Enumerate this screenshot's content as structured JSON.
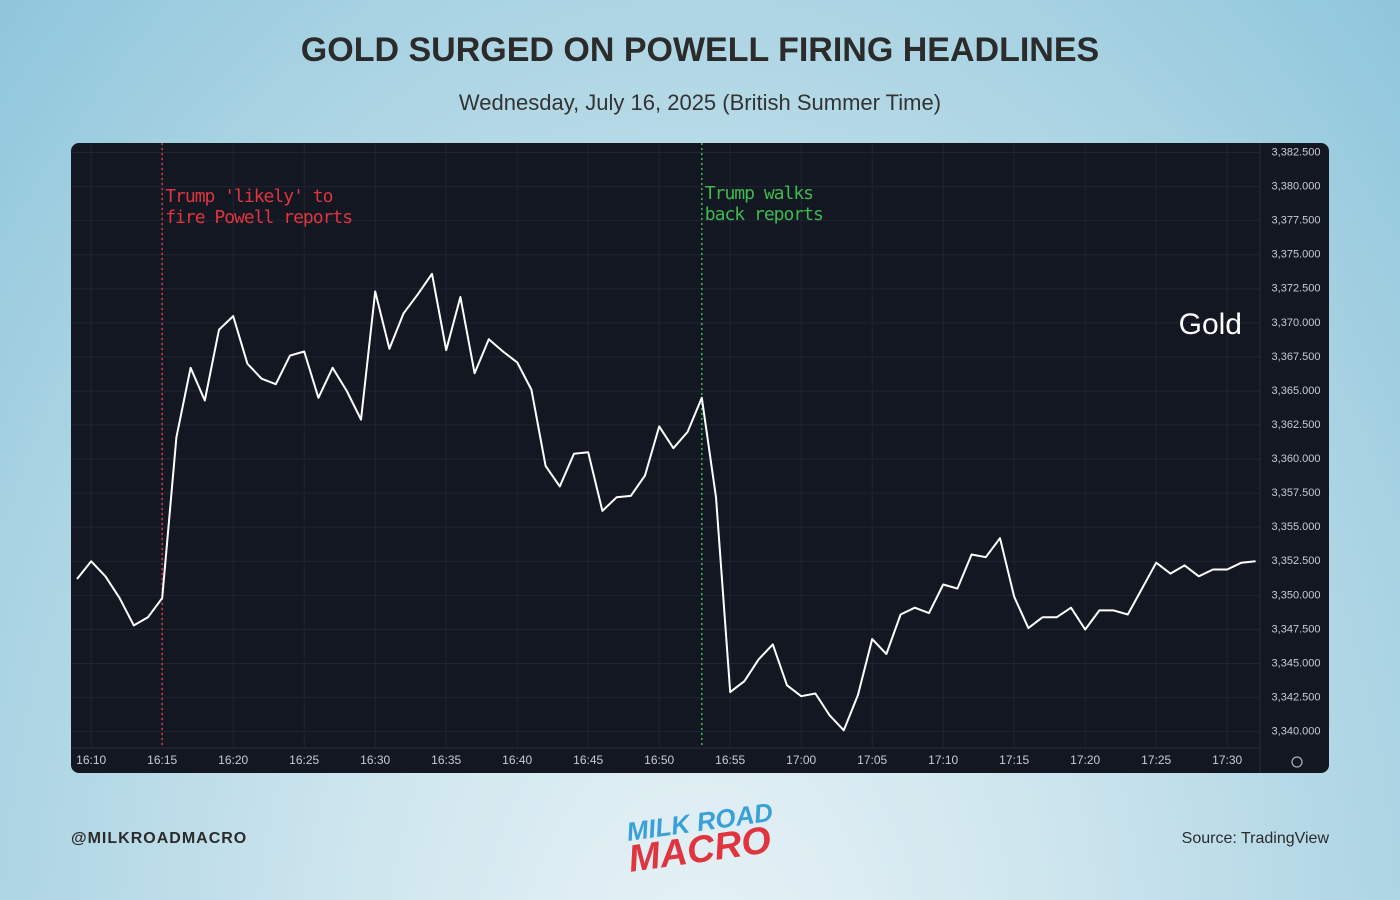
{
  "chart_data": {
    "type": "line",
    "title": "GOLD SURGED ON POWELL FIRING HEADLINES",
    "subtitle": "Wednesday, July 16, 2025 (British Summer Time)",
    "categories": [
      null,
      "16:10",
      null,
      null,
      null,
      null,
      "16:15",
      null,
      null,
      null,
      null,
      "16:20",
      null,
      null,
      null,
      null,
      "16:25",
      null,
      null,
      null,
      null,
      "16:30",
      null,
      null,
      null,
      null,
      "16:35",
      null,
      null,
      null,
      null,
      "16:40",
      null,
      null,
      null,
      null,
      "16:45",
      null,
      null,
      null,
      null,
      "16:50",
      null,
      null,
      null,
      null,
      "16:55",
      null,
      null,
      null,
      null,
      "17:00",
      null,
      null,
      null,
      null,
      "17:05",
      null,
      null,
      null,
      null,
      "17:10",
      null,
      null,
      null,
      null,
      "17:15",
      null,
      null,
      null,
      null,
      "17:20",
      null,
      null,
      null,
      null,
      "17:25",
      null,
      null,
      null,
      null,
      "17:30",
      null,
      null
    ],
    "series": [
      {
        "name": "Gold",
        "color": "#ffffff",
        "values": [
          3351.2,
          3352.5,
          3351.4,
          3349.8,
          3347.8,
          3348.4,
          3349.8,
          3361.6,
          3366.7,
          3364.3,
          3369.5,
          3370.5,
          3367.0,
          3365.9,
          3365.5,
          3367.6,
          3367.9,
          3364.5,
          3366.7,
          3365.0,
          3362.9,
          3372.3,
          3368.1,
          3370.7,
          3372.1,
          3373.6,
          3368.0,
          3371.9,
          3366.3,
          3368.8,
          3367.9,
          3367.1,
          3365.1,
          3359.5,
          3358.0,
          3360.4,
          3360.5,
          3356.2,
          3357.2,
          3357.3,
          3358.8,
          3362.4,
          3360.8,
          3362.0,
          3364.5,
          3357.2,
          3342.9,
          3343.7,
          3345.3,
          3346.4,
          3343.4,
          3342.6,
          3342.8,
          3341.2,
          3340.1,
          3342.7,
          3346.8,
          3345.7,
          3348.6,
          3349.1,
          3348.7,
          3350.8,
          3350.5,
          3353.0,
          3352.8,
          3354.2,
          3349.9,
          3347.6,
          3348.4,
          3348.4,
          3349.1,
          3347.5,
          3348.9,
          3348.9,
          3348.6,
          3350.5,
          3352.4,
          3351.6,
          3352.2,
          3351.4,
          3351.9,
          3351.9,
          3352.4,
          3352.5
        ]
      }
    ],
    "ylim": [
      3338.8,
      3383.2
    ],
    "yticks": [
      {
        "value": 3340,
        "label": "3,340.000"
      },
      {
        "value": 3342.5,
        "label": "3,342.500"
      },
      {
        "value": 3345,
        "label": "3,345.000"
      },
      {
        "value": 3347.5,
        "label": "3,347.500"
      },
      {
        "value": 3350,
        "label": "3,350.000"
      },
      {
        "value": 3352.5,
        "label": "3,352.500"
      },
      {
        "value": 3355,
        "label": "3,355.000"
      },
      {
        "value": 3357.5,
        "label": "3,357.500"
      },
      {
        "value": 3360,
        "label": "3,360.000"
      },
      {
        "value": 3362.5,
        "label": "3,362.500"
      },
      {
        "value": 3365,
        "label": "3,365.000"
      },
      {
        "value": 3367.5,
        "label": "3,367.500"
      },
      {
        "value": 3370,
        "label": "3,370.000"
      },
      {
        "value": 3372.5,
        "label": "3,372.500"
      },
      {
        "value": 3375,
        "label": "3,375.000"
      },
      {
        "value": 3377.5,
        "label": "3,377.500"
      },
      {
        "value": 3380,
        "label": "3,380.000"
      },
      {
        "value": 3382.5,
        "label": "3,382.500"
      }
    ],
    "grid": true,
    "annotations": [
      {
        "lines": [
          "Trump 'likely' to",
          "fire Powell reports"
        ],
        "at": 6,
        "color": "#e0343f"
      },
      {
        "lines": [
          "Trump walks",
          "back reports"
        ],
        "at": 44,
        "color": "#3fb950"
      }
    ]
  },
  "footer": {
    "handle": "@MILKROADMACRO",
    "source": "Source: TradingView",
    "logo": [
      "MILK ROAD",
      "MACRO"
    ]
  }
}
